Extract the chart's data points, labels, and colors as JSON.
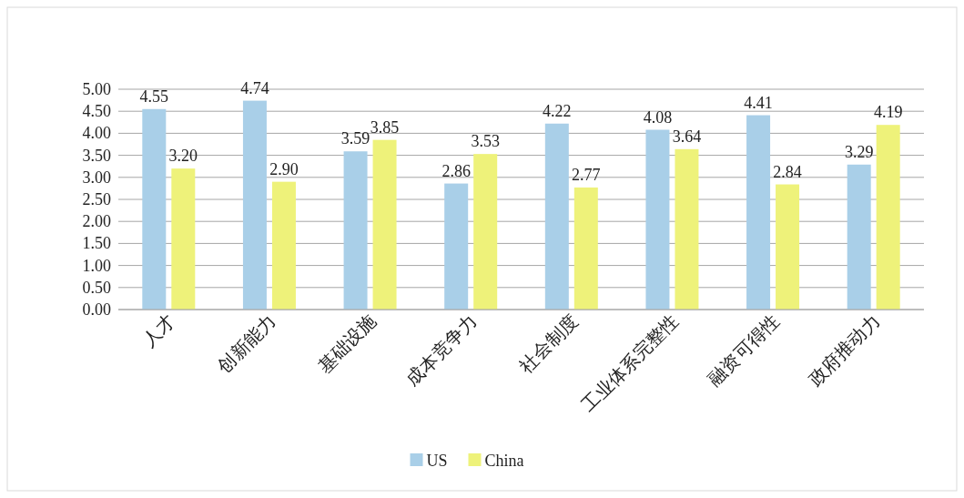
{
  "chart_data": {
    "type": "bar",
    "categories": [
      "人才",
      "创新能力",
      "基础设施",
      "成本竞争力",
      "社会制度",
      "工业体系完整性",
      "融资可得性",
      "政府推动力"
    ],
    "series": [
      {
        "name": "US",
        "color": "#a9cfe8",
        "values": [
          4.55,
          4.74,
          3.59,
          2.86,
          4.22,
          4.08,
          4.41,
          3.29
        ],
        "value_labels": [
          "4.55",
          "4.74",
          "3.59",
          "2.86",
          "4.22",
          "4.08",
          "4.41",
          "3.29"
        ]
      },
      {
        "name": "China",
        "color": "#eef27a",
        "values": [
          3.2,
          2.9,
          3.85,
          3.53,
          2.77,
          3.64,
          2.84,
          4.19
        ],
        "value_labels": [
          "3.20",
          "2.90",
          "3.85",
          "3.53",
          "2.77",
          "3.64",
          "2.84",
          "4.19"
        ]
      }
    ],
    "ylim": [
      0,
      5
    ],
    "yticks": [
      {
        "value": 0,
        "label": "0.00"
      },
      {
        "value": 0.5,
        "label": "0.50"
      },
      {
        "value": 1,
        "label": "1.00"
      },
      {
        "value": 1.5,
        "label": "1.50"
      },
      {
        "value": 2,
        "label": "2.00"
      },
      {
        "value": 2.5,
        "label": "2.50"
      },
      {
        "value": 3,
        "label": "3.00"
      },
      {
        "value": 3.5,
        "label": "3.50"
      },
      {
        "value": 4,
        "label": "4.00"
      },
      {
        "value": 4.5,
        "label": "4.50"
      },
      {
        "value": 5,
        "label": "5.00"
      }
    ],
    "grid": "y",
    "legend": "bottom"
  }
}
